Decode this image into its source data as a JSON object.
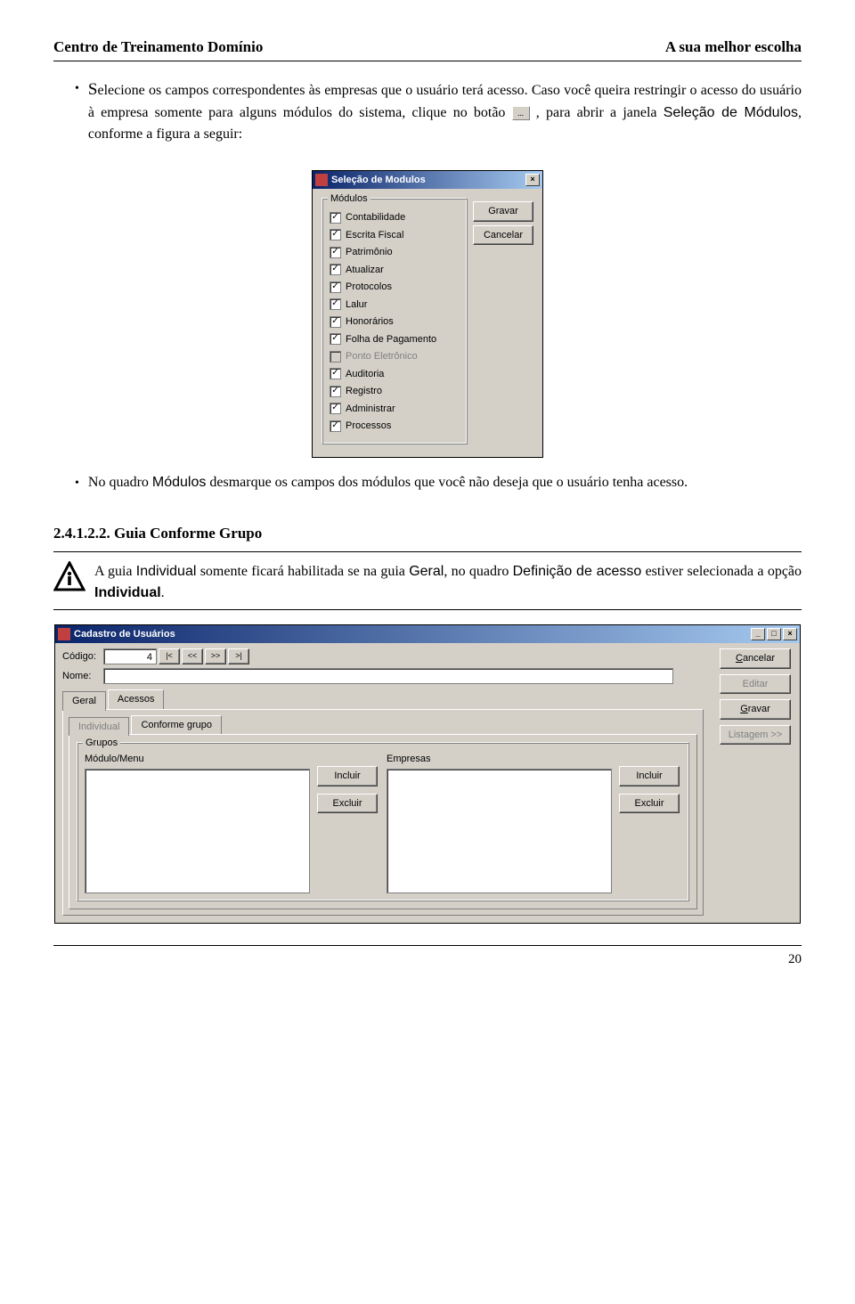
{
  "header": {
    "left": "Centro de Treinamento Domínio",
    "right": "A sua melhor escolha"
  },
  "para1_prefix": "S",
  "para1_rest": "elecione os campos correspondentes às empresas que o usuário terá acesso. Caso você queira restringir o acesso do usuário à empresa somente para alguns módulos do sistema, clique no botão ",
  "para1_after_btn": " , para abrir a janela ",
  "para1_sel": "Seleção de Módulos",
  "para1_end": ", conforme a figura a seguir:",
  "ellipsis": "...",
  "modDialog": {
    "title": "Seleção de Modulos",
    "group": "Módulos",
    "items": [
      {
        "label": "Contabilidade",
        "checked": true,
        "enabled": true
      },
      {
        "label": "Escrita Fiscal",
        "checked": true,
        "enabled": true
      },
      {
        "label": "Patrimônio",
        "checked": true,
        "enabled": true
      },
      {
        "label": "Atualizar",
        "checked": true,
        "enabled": true
      },
      {
        "label": "Protocolos",
        "checked": true,
        "enabled": true
      },
      {
        "label": "Lalur",
        "checked": true,
        "enabled": true
      },
      {
        "label": "Honorários",
        "checked": true,
        "enabled": true
      },
      {
        "label": "Folha de Pagamento",
        "checked": true,
        "enabled": true
      },
      {
        "label": "Ponto Eletrônico",
        "checked": false,
        "enabled": false
      },
      {
        "label": "Auditoria",
        "checked": true,
        "enabled": true
      },
      {
        "label": "Registro",
        "checked": true,
        "enabled": true
      },
      {
        "label": "Administrar",
        "checked": true,
        "enabled": true
      },
      {
        "label": "Processos",
        "checked": true,
        "enabled": true
      }
    ],
    "btnSave": "Gravar",
    "btnCancel": "Cancelar"
  },
  "para2_a": "No quadro ",
  "para2_mod": "Módulos",
  "para2_b": " desmarque os campos dos módulos que você não deseja que o usuário tenha acesso.",
  "sectionNum": "2.4.1.2.2. Guia Conforme Grupo",
  "info_a": "A guia ",
  "info_ind": "Individual",
  "info_b": " somente ficará habilitada se na guia ",
  "info_geral": "Geral",
  "info_c": ", no quadro ",
  "info_def": "Definição de acesso",
  "info_d": " estiver selecionada a opção ",
  "info_ind2": "Individual",
  "info_e": ".",
  "cadDialog": {
    "title": "Cadastro de Usuários",
    "lblCodigo": "Código:",
    "valCodigo": "4",
    "navFirst": "|<",
    "navPrev": "<<",
    "navNext": ">>",
    "navLast": ">|",
    "lblNome": "Nome:",
    "btnCancel": "Cancelar",
    "btnEdit": "Editar",
    "btnSave": "Gravar",
    "btnList": "Listagem >>",
    "tabGeral": "Geral",
    "tabAcessos": "Acessos",
    "tabIndividual": "Individual",
    "tabConforme": "Conforme grupo",
    "grpGrupos": "Grupos",
    "colModMenu": "Módulo/Menu",
    "colEmpresas": "Empresas",
    "btnIncluir": "Incluir",
    "btnExcluir": "Excluir"
  },
  "pageNum": "20",
  "colors": {
    "titlebarStart": "#0a246a",
    "titlebarEnd": "#a6caf0",
    "dialogBg": "#d4d0c8"
  }
}
